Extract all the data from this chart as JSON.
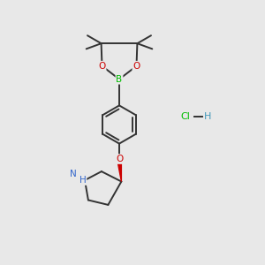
{
  "bg_color": "#e8e8e8",
  "bond_color": "#333333",
  "bond_width": 1.4,
  "atom_colors": {
    "B": "#00bb00",
    "O": "#cc0000",
    "N": "#3366cc",
    "H_N": "#3366cc",
    "Cl": "#00bb00",
    "H_Cl": "#4499bb",
    "C": "#333333"
  },
  "figsize": [
    3.0,
    3.0
  ],
  "dpi": 100
}
